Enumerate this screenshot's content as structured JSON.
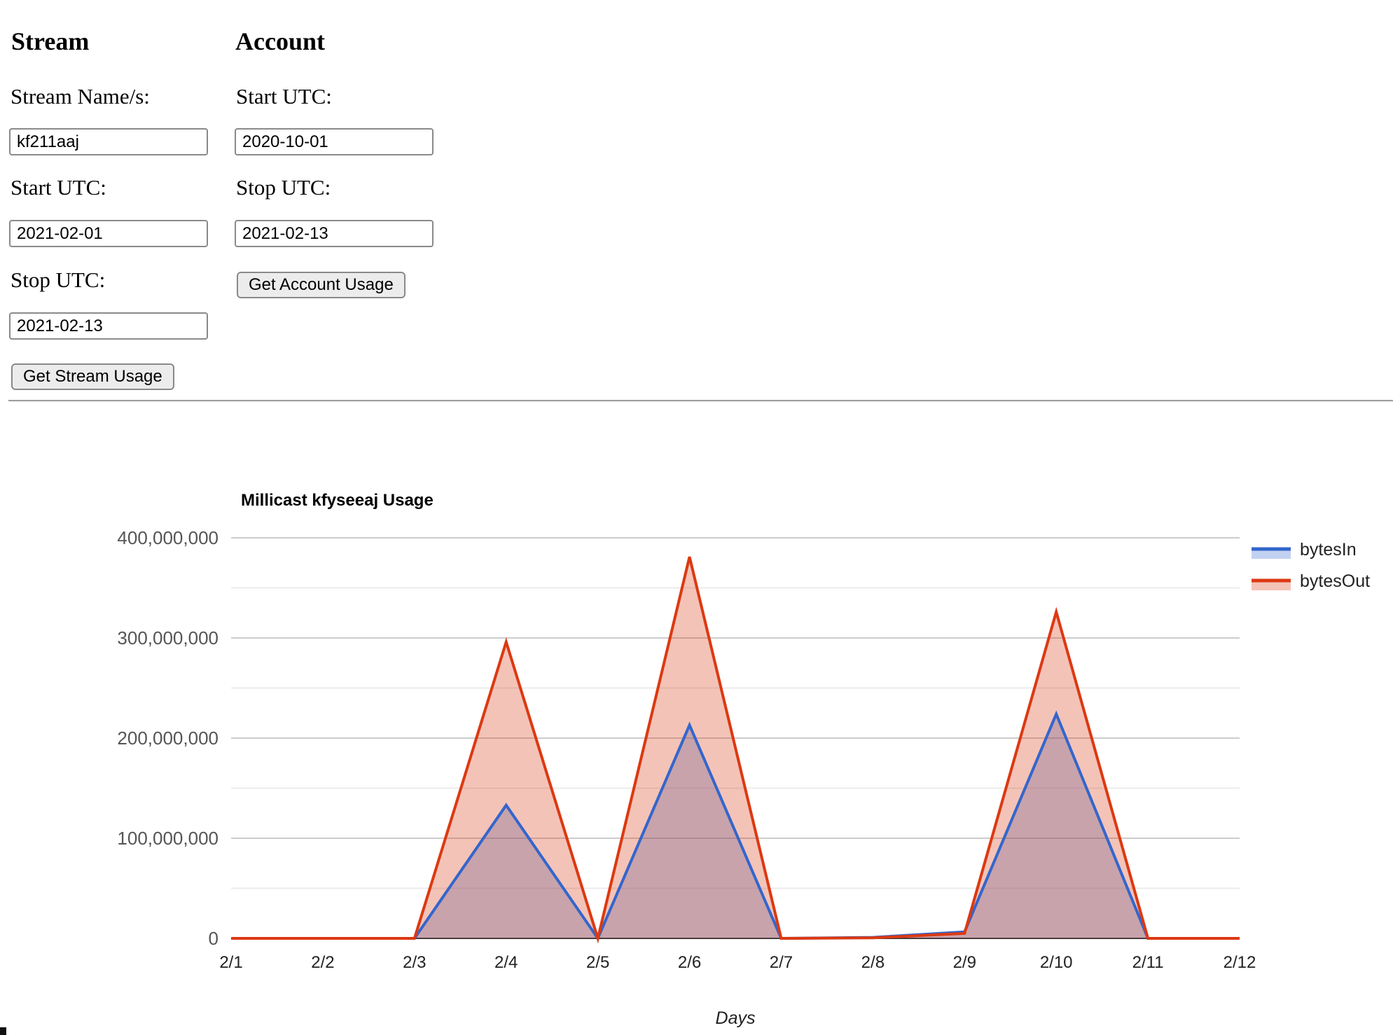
{
  "form": {
    "stream": {
      "heading": "Stream",
      "name_label": "Stream Name/s:",
      "name_value": "kf211aaj",
      "start_label": "Start UTC:",
      "start_value": "2021-02-01",
      "stop_label": "Stop UTC:",
      "stop_value": "2021-02-13",
      "button_label": "Get Stream Usage"
    },
    "account": {
      "heading": "Account",
      "start_label": "Start UTC:",
      "start_value": "2020-10-01",
      "stop_label": "Stop UTC:",
      "stop_value": "2021-02-13",
      "button_label": "Get Account Usage"
    }
  },
  "chart_data": {
    "type": "area",
    "title": "Millicast kfyseeaj Usage",
    "xlabel": "Days",
    "ylabel": "",
    "categories": [
      "2/1",
      "2/2",
      "2/3",
      "2/4",
      "2/5",
      "2/6",
      "2/7",
      "2/8",
      "2/9",
      "2/10",
      "2/11",
      "2/12"
    ],
    "series": [
      {
        "name": "bytesIn",
        "color": "#3366CC",
        "values": [
          0,
          0,
          0,
          133000000,
          0,
          213000000,
          0,
          1000000,
          6500000,
          224000000,
          0,
          0
        ]
      },
      {
        "name": "bytesOut",
        "color": "#DC3912",
        "values": [
          0,
          0,
          0,
          296000000,
          0,
          381000000,
          0,
          500000,
          5000000,
          326000000,
          0,
          0
        ]
      }
    ],
    "ylim": [
      0,
      400000000
    ],
    "y_ticks": [
      0,
      100000000,
      200000000,
      300000000,
      400000000
    ],
    "y_tick_labels": [
      "0",
      "100,000,000",
      "200,000,000",
      "300,000,000",
      "400,000,000"
    ],
    "minor_ticks": [
      50000000,
      150000000,
      250000000,
      350000000
    ],
    "grid": true,
    "legend_position": "right",
    "fill_opacity": 0.3,
    "colors": {
      "major_gridline": "#cccccc",
      "minor_gridline": "#ebebeb",
      "baseline": "#333333",
      "y_label_text": "#555555",
      "x_label_text": "#222222",
      "legend_text": "#222222",
      "title_text": "#000000"
    }
  }
}
